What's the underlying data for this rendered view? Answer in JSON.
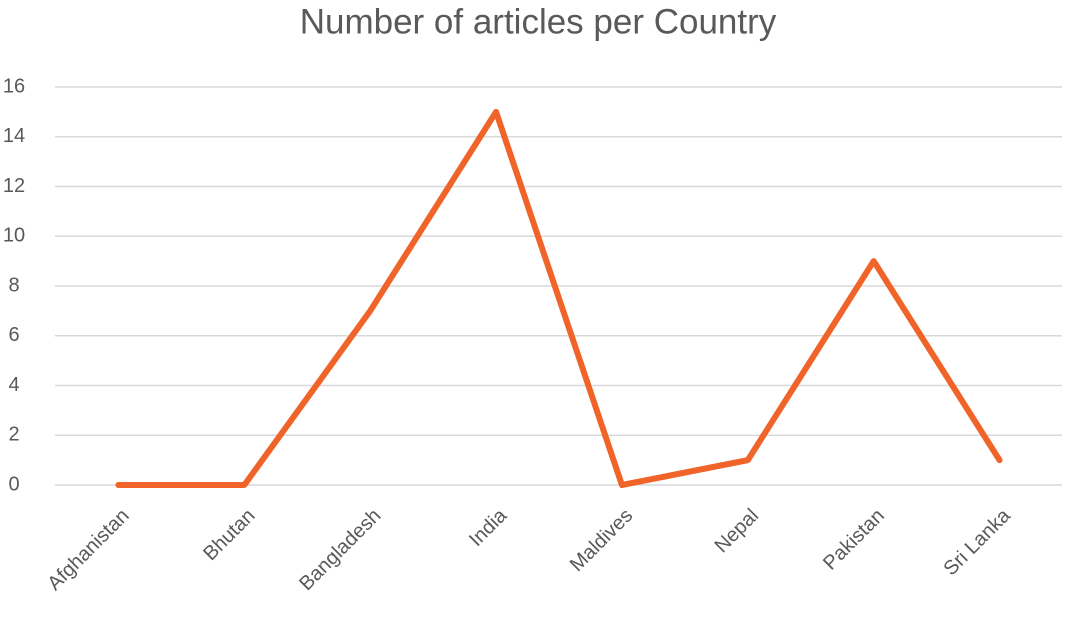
{
  "chart_data": {
    "type": "line",
    "title": "Number of articles per Country",
    "categories": [
      "Afghanistan",
      "Bhutan",
      "Bangladesh",
      "India",
      "Maldives",
      "Nepal",
      "Pakistan",
      "Sri Lanka"
    ],
    "values": [
      0,
      0,
      7,
      15,
      0,
      1,
      9,
      1
    ],
    "color": "#f0642a",
    "ylim": [
      0,
      16
    ],
    "yticks": [
      0,
      2,
      4,
      6,
      8,
      10,
      12,
      14,
      16
    ],
    "grid": true
  }
}
